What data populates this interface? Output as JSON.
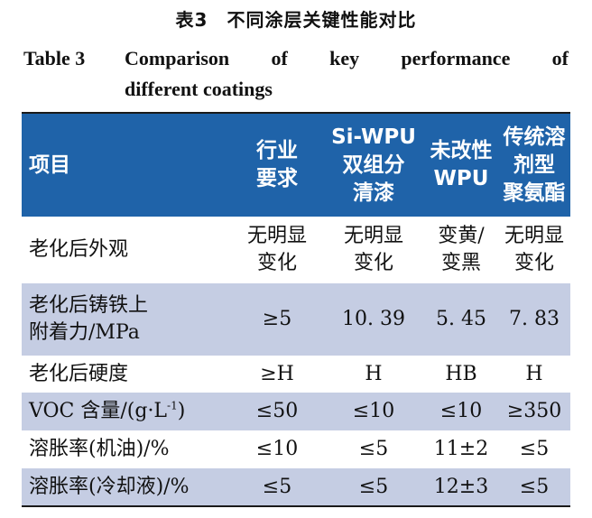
{
  "title_cn": "表3　不同涂层关键性能对比",
  "title_en": {
    "label": "Table 3",
    "words": [
      "Comparison",
      "of",
      "key",
      "performance",
      "of"
    ],
    "line2": "different coatings"
  },
  "colors": {
    "header_bg": "#1f63a9",
    "shaded_row": "#c5cde3"
  },
  "table": {
    "headers": [
      [
        "项目"
      ],
      [
        "行业",
        "要求"
      ],
      [
        "Si-WPU",
        "双组分",
        "清漆"
      ],
      [
        "未改性",
        "WPU"
      ],
      [
        "传统溶",
        "剂型",
        "聚氨酯"
      ]
    ],
    "rows": [
      {
        "item": [
          "老化后外观"
        ],
        "values": [
          [
            "无明显",
            "变化"
          ],
          [
            "无明显",
            "变化"
          ],
          [
            "变黄/",
            "变黑"
          ],
          [
            "无明显",
            "变化"
          ]
        ]
      },
      {
        "item": [
          "老化后铸铁上",
          "附着力/MPa"
        ],
        "values": [
          [
            "≥5"
          ],
          [
            "10. 39"
          ],
          [
            "5. 45"
          ],
          [
            "7. 83"
          ]
        ]
      },
      {
        "item": [
          "老化后硬度"
        ],
        "values": [
          [
            "≥H"
          ],
          [
            "H"
          ],
          [
            "HB"
          ],
          [
            "H"
          ]
        ]
      },
      {
        "item_prefix": "VOC 含量/(g·L",
        "item_sup": "-1",
        "item_suffix": ")",
        "values": [
          [
            "≤50"
          ],
          [
            "≤10"
          ],
          [
            "≤10"
          ],
          [
            "≥350"
          ]
        ]
      },
      {
        "item": [
          "溶胀率(机油)/%"
        ],
        "values": [
          [
            "≤10"
          ],
          [
            "≤5"
          ],
          [
            "11±2"
          ],
          [
            "≤5"
          ]
        ]
      },
      {
        "item": [
          "溶胀率(冷却液)/%"
        ],
        "values": [
          [
            "≤5"
          ],
          [
            "≤5"
          ],
          [
            "12±3"
          ],
          [
            "≤5"
          ]
        ]
      }
    ]
  }
}
